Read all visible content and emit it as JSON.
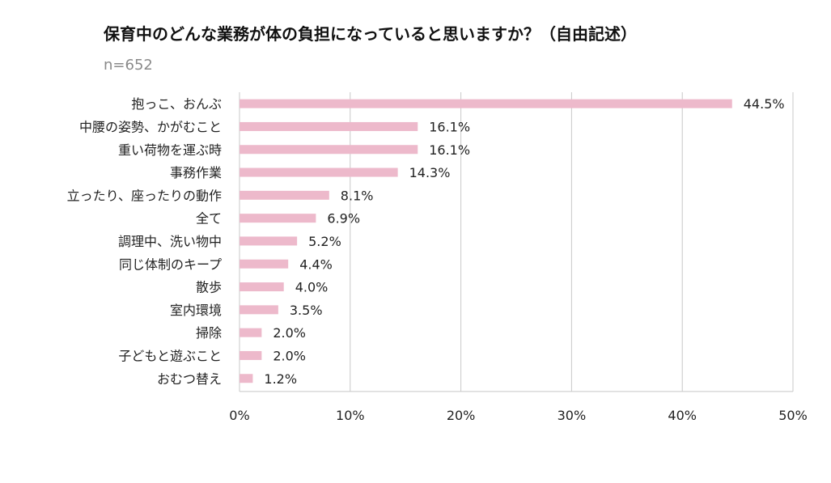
{
  "chart_data": {
    "type": "bar",
    "orientation": "horizontal",
    "title": "保育中のどんな業務が体の負担になっていると思いますか？（自由記述）",
    "subtitle": "n=652",
    "categories": [
      "抱っこ、おんぶ",
      "中腰の姿勢、かがむこと",
      "重い荷物を運ぶ時",
      "事務作業",
      "立ったり、座ったりの動作",
      "全て",
      "調理中、洗い物中",
      "同じ体制のキープ",
      "散歩",
      "室内環境",
      "掃除",
      "子どもと遊ぶこと",
      "おむつ替え"
    ],
    "values": [
      44.5,
      16.1,
      16.1,
      14.3,
      8.1,
      6.9,
      5.2,
      4.4,
      4.0,
      3.5,
      2.0,
      2.0,
      1.2
    ],
    "value_labels": [
      "44.5%",
      "16.1%",
      "16.1%",
      "14.3%",
      "8.1%",
      "6.9%",
      "5.2%",
      "4.4%",
      "4.0%",
      "3.5%",
      "2.0%",
      "2.0%",
      "1.2%"
    ],
    "xlim": [
      0,
      50
    ],
    "xticks": [
      0,
      10,
      20,
      30,
      40,
      50
    ],
    "xtick_labels": [
      "0%",
      "10%",
      "20%",
      "30%",
      "40%",
      "50%"
    ],
    "xlabel": "",
    "ylabel": "",
    "grid": true,
    "bar_color": "#edb9cb",
    "grid_color": "#c8c8c8"
  }
}
